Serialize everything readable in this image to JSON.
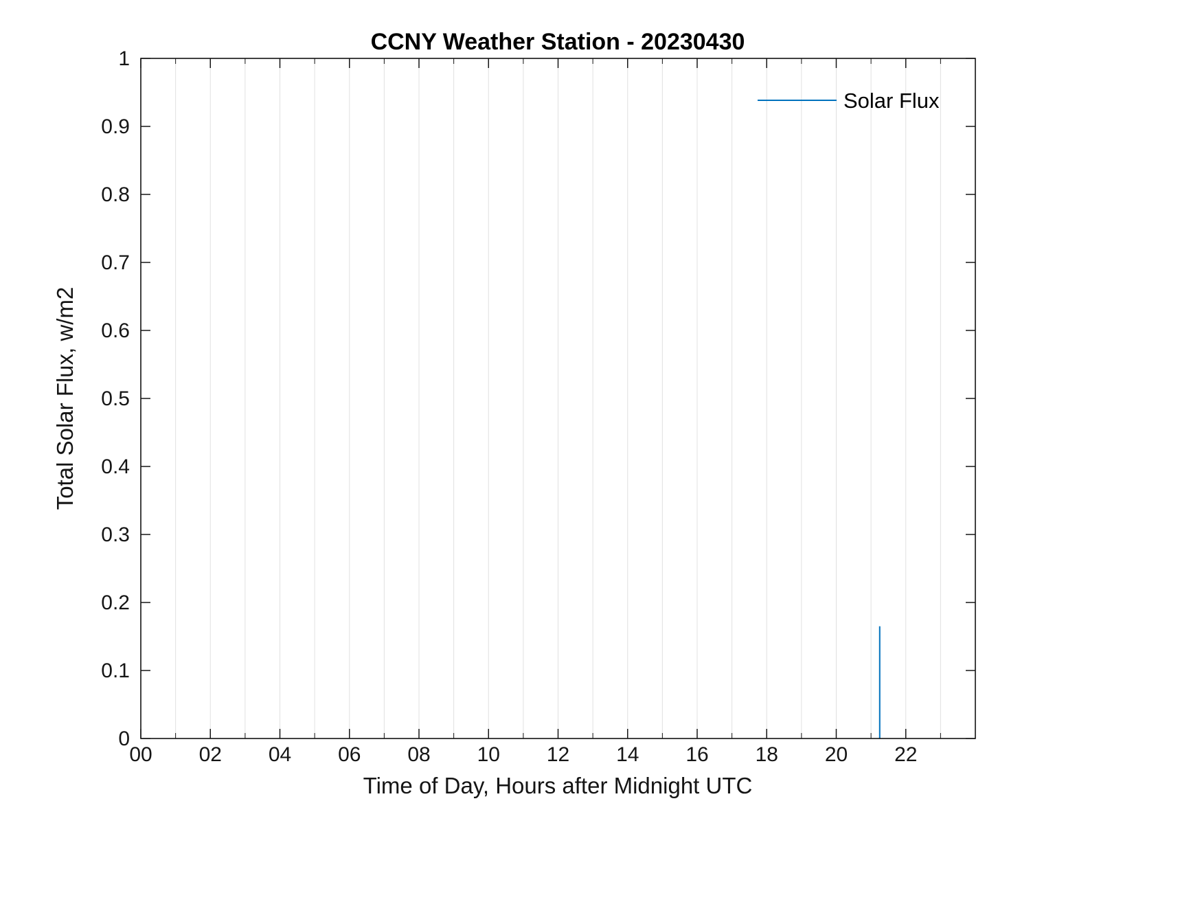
{
  "chart_data": {
    "type": "line",
    "title": "CCNY Weather Station - 20230430",
    "xlabel": "Time of Day, Hours after Midnight UTC",
    "ylabel": "Total Solar Flux, w/m2",
    "xlim": [
      0,
      24
    ],
    "ylim": [
      0,
      1
    ],
    "x_major_ticks": [
      0,
      2,
      4,
      6,
      8,
      10,
      12,
      14,
      16,
      18,
      20,
      22
    ],
    "x_tick_labels": [
      "00",
      "02",
      "04",
      "06",
      "08",
      "10",
      "12",
      "14",
      "16",
      "18",
      "20",
      "22"
    ],
    "x_minor_tick_step": 1,
    "y_ticks": [
      0,
      0.1,
      0.2,
      0.3,
      0.4,
      0.5,
      0.6,
      0.7,
      0.8,
      0.9,
      1
    ],
    "y_tick_labels": [
      "0",
      "0.1",
      "0.2",
      "0.3",
      "0.4",
      "0.5",
      "0.6",
      "0.7",
      "0.8",
      "0.9",
      "1"
    ],
    "grid": "vertical",
    "legend_position": "top-right-inside",
    "colors": {
      "series": "#0072BD",
      "grid": "#E0E0E0",
      "axis": "#151515",
      "frame": "#000000"
    },
    "series": [
      {
        "name": "Solar Flux",
        "color": "#0072BD",
        "points": [
          [
            21.25,
            0
          ],
          [
            21.25,
            0.165
          ],
          [
            21.25,
            0
          ]
        ]
      }
    ]
  }
}
